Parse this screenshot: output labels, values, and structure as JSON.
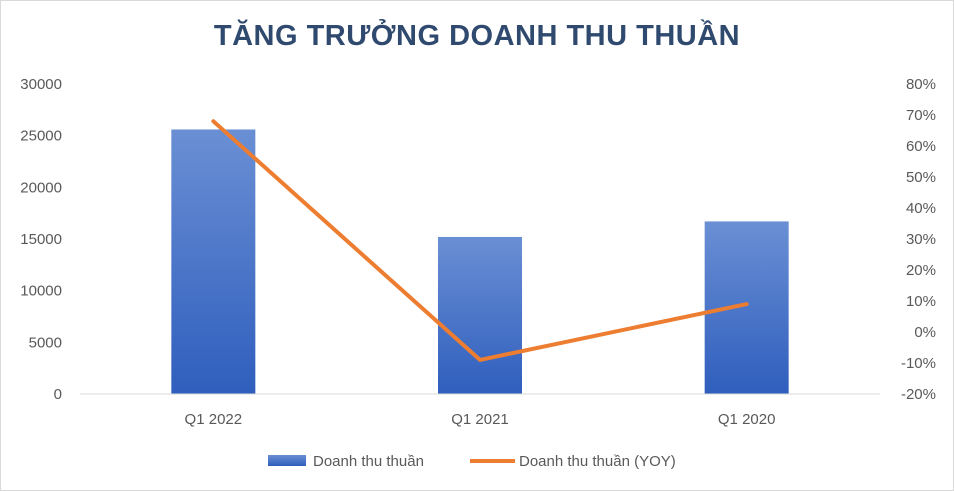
{
  "chart_data": {
    "type": "bar",
    "title": "TĂNG TRƯỞNG DOANH THU THUẦN",
    "categories": [
      "Q1 2022",
      "Q1 2021",
      "Q1 2020"
    ],
    "series": [
      {
        "name": "Doanh thu thuần",
        "type": "bar",
        "axis": "left",
        "values": [
          25600,
          15200,
          16700
        ],
        "color": "#4472c4"
      },
      {
        "name": "Doanh thu thuần (YOY)",
        "type": "line",
        "axis": "right",
        "values": [
          0.68,
          -0.09,
          0.09
        ],
        "color": "#ed7d31"
      }
    ],
    "y_left": {
      "range": [
        0,
        30000
      ],
      "ticks": [
        0,
        5000,
        10000,
        15000,
        20000,
        25000,
        30000
      ],
      "tick_labels": [
        "0",
        "5000",
        "10000",
        "15000",
        "20000",
        "25000",
        "30000"
      ]
    },
    "y_right": {
      "range": [
        -0.2,
        0.8
      ],
      "ticks": [
        -0.2,
        -0.1,
        0,
        0.1,
        0.2,
        0.3,
        0.4,
        0.5,
        0.6,
        0.7,
        0.8
      ],
      "tick_labels": [
        "-20%",
        "-10%",
        "0%",
        "10%",
        "20%",
        "30%",
        "40%",
        "50%",
        "60%",
        "70%",
        "80%"
      ]
    },
    "grid": false,
    "legend_position": "bottom"
  }
}
